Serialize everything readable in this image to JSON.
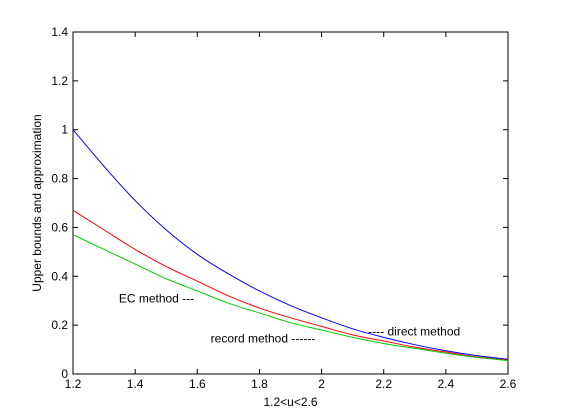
{
  "chart_data": {
    "type": "line",
    "title": "",
    "xlabel": "1.2<u<2.6",
    "ylabel": "Upper bounds and approximation",
    "xlim": [
      1.2,
      2.6
    ],
    "ylim": [
      0,
      1.4
    ],
    "xticks": [
      "1.2",
      "1.4",
      "1.6",
      "1.8",
      "2",
      "2.2",
      "2.4",
      "2.6"
    ],
    "yticks": [
      "0",
      "0.2",
      "0.4",
      "0.6",
      "0.8",
      "1",
      "1.2",
      "1.4"
    ],
    "grid": false,
    "series": [
      {
        "name": "direct method",
        "color": "#0000ff",
        "x": [
          1.2,
          1.3,
          1.4,
          1.5,
          1.6,
          1.7,
          1.8,
          1.9,
          2.0,
          2.1,
          2.2,
          2.3,
          2.4,
          2.5,
          2.6
        ],
        "y": [
          1.0,
          0.85,
          0.71,
          0.59,
          0.49,
          0.41,
          0.34,
          0.28,
          0.23,
          0.185,
          0.15,
          0.12,
          0.095,
          0.075,
          0.06
        ]
      },
      {
        "name": "EC method",
        "color": "#ff0000",
        "x": [
          1.2,
          1.3,
          1.4,
          1.5,
          1.6,
          1.7,
          1.8,
          1.9,
          2.0,
          2.1,
          2.2,
          2.3,
          2.4,
          2.5,
          2.6
        ],
        "y": [
          0.67,
          0.59,
          0.51,
          0.44,
          0.38,
          0.32,
          0.27,
          0.23,
          0.195,
          0.16,
          0.135,
          0.11,
          0.09,
          0.07,
          0.057
        ]
      },
      {
        "name": "record method",
        "color": "#00cc00",
        "x": [
          1.2,
          1.3,
          1.4,
          1.5,
          1.6,
          1.7,
          1.8,
          1.9,
          2.0,
          2.1,
          2.2,
          2.3,
          2.4,
          2.5,
          2.6
        ],
        "y": [
          0.57,
          0.51,
          0.45,
          0.39,
          0.34,
          0.29,
          0.25,
          0.21,
          0.18,
          0.15,
          0.125,
          0.105,
          0.085,
          0.068,
          0.055
        ]
      }
    ],
    "annotations": [
      {
        "text": "EC method ---",
        "series": "EC method",
        "x": 1.59,
        "y": 0.31
      },
      {
        "text": "---- direct method",
        "series": "direct method",
        "x": 2.15,
        "y": 0.175
      },
      {
        "text": "record method ------",
        "series": "record method",
        "x": 1.98,
        "y": 0.145
      }
    ]
  }
}
